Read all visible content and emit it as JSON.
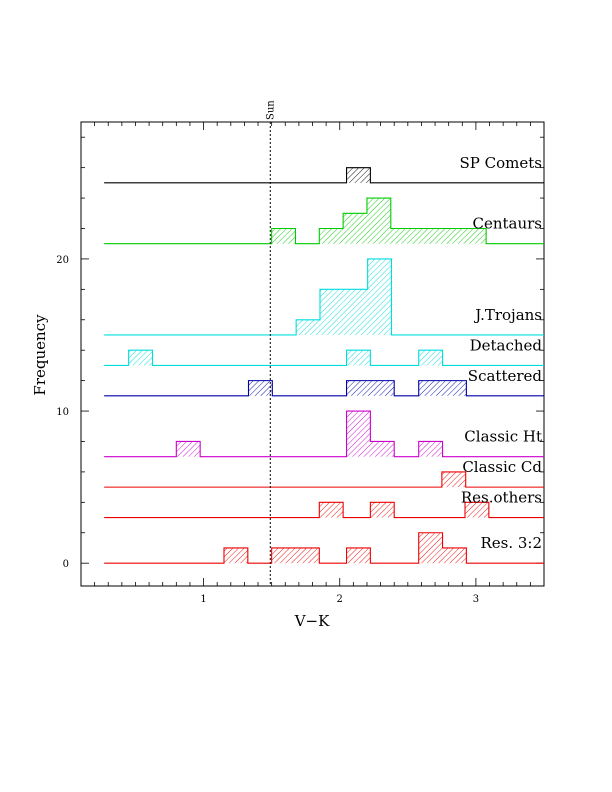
{
  "chart_data": {
    "type": "histogram",
    "xlabel": "V−K",
    "ylabel": "Frequency",
    "xlim": [
      0.1,
      3.5
    ],
    "ylim": [
      -1.5,
      29
    ],
    "x_ticks": [
      1,
      2,
      3
    ],
    "y_ticks": [
      0,
      10,
      20
    ],
    "bin_width": 0.175,
    "grid": false,
    "legend": "none",
    "reference_line": {
      "label": "Sun",
      "x": 1.49,
      "style": "dotted"
    },
    "series": [
      {
        "name": "SP Comets",
        "color": "#000000",
        "baseline": 25,
        "x_start": 0.27,
        "x_end": 3.5,
        "bins": [
          {
            "x0": 2.05,
            "count": 1
          }
        ]
      },
      {
        "name": "Centaurs",
        "color": "#00cc00",
        "baseline": 21,
        "x_start": 0.27,
        "x_end": 3.5,
        "bins": [
          {
            "x0": 1.5,
            "count": 1
          },
          {
            "x0": 1.85,
            "count": 1
          },
          {
            "x0": 2.025,
            "count": 2
          },
          {
            "x0": 2.2,
            "count": 3
          },
          {
            "x0": 2.375,
            "count": 1
          },
          {
            "x0": 2.55,
            "count": 1
          },
          {
            "x0": 2.725,
            "count": 1
          },
          {
            "x0": 2.9,
            "count": 1
          }
        ]
      },
      {
        "name": "J.Trojans",
        "color": "#00dddd",
        "baseline": 15,
        "x_start": 0.27,
        "x_end": 3.5,
        "bins": [
          {
            "x0": 1.68,
            "count": 1
          },
          {
            "x0": 1.855,
            "count": 3
          },
          {
            "x0": 2.03,
            "count": 3
          },
          {
            "x0": 2.205,
            "count": 5
          }
        ]
      },
      {
        "name": "Detached",
        "color": "#00dddd",
        "baseline": 13,
        "x_start": 0.27,
        "x_end": 3.5,
        "bins": [
          {
            "x0": 0.45,
            "count": 1
          },
          {
            "x0": 2.05,
            "count": 1
          },
          {
            "x0": 2.58,
            "count": 1
          }
        ]
      },
      {
        "name": "Scattered",
        "color": "#0000aa",
        "baseline": 11,
        "x_start": 0.27,
        "x_end": 3.5,
        "bins": [
          {
            "x0": 1.33,
            "count": 1
          },
          {
            "x0": 2.05,
            "count": 1
          },
          {
            "x0": 2.225,
            "count": 1
          },
          {
            "x0": 2.58,
            "count": 1
          },
          {
            "x0": 2.755,
            "count": 1
          }
        ]
      },
      {
        "name": "Classic Ht",
        "color": "#cc00cc",
        "baseline": 7,
        "x_start": 0.27,
        "x_end": 3.5,
        "bins": [
          {
            "x0": 0.8,
            "count": 1
          },
          {
            "x0": 2.05,
            "count": 3
          },
          {
            "x0": 2.225,
            "count": 1
          },
          {
            "x0": 2.58,
            "count": 1
          }
        ]
      },
      {
        "name": "Classic Cd",
        "color": "#ee0000",
        "baseline": 5,
        "x_start": 0.27,
        "x_end": 3.5,
        "bins": [
          {
            "x0": 2.75,
            "count": 1
          }
        ]
      },
      {
        "name": "Res.others",
        "color": "#ee0000",
        "baseline": 3,
        "x_start": 0.27,
        "x_end": 3.5,
        "bins": [
          {
            "x0": 1.85,
            "count": 1
          },
          {
            "x0": 2.225,
            "count": 1
          },
          {
            "x0": 2.92,
            "count": 1
          }
        ]
      },
      {
        "name": "Res. 3:2",
        "color": "#ee0000",
        "baseline": 0,
        "x_start": 0.27,
        "x_end": 3.5,
        "bins": [
          {
            "x0": 1.15,
            "count": 1
          },
          {
            "x0": 1.5,
            "count": 1
          },
          {
            "x0": 1.675,
            "count": 1
          },
          {
            "x0": 2.05,
            "count": 1
          },
          {
            "x0": 2.58,
            "count": 2
          },
          {
            "x0": 2.755,
            "count": 1
          }
        ]
      }
    ]
  }
}
